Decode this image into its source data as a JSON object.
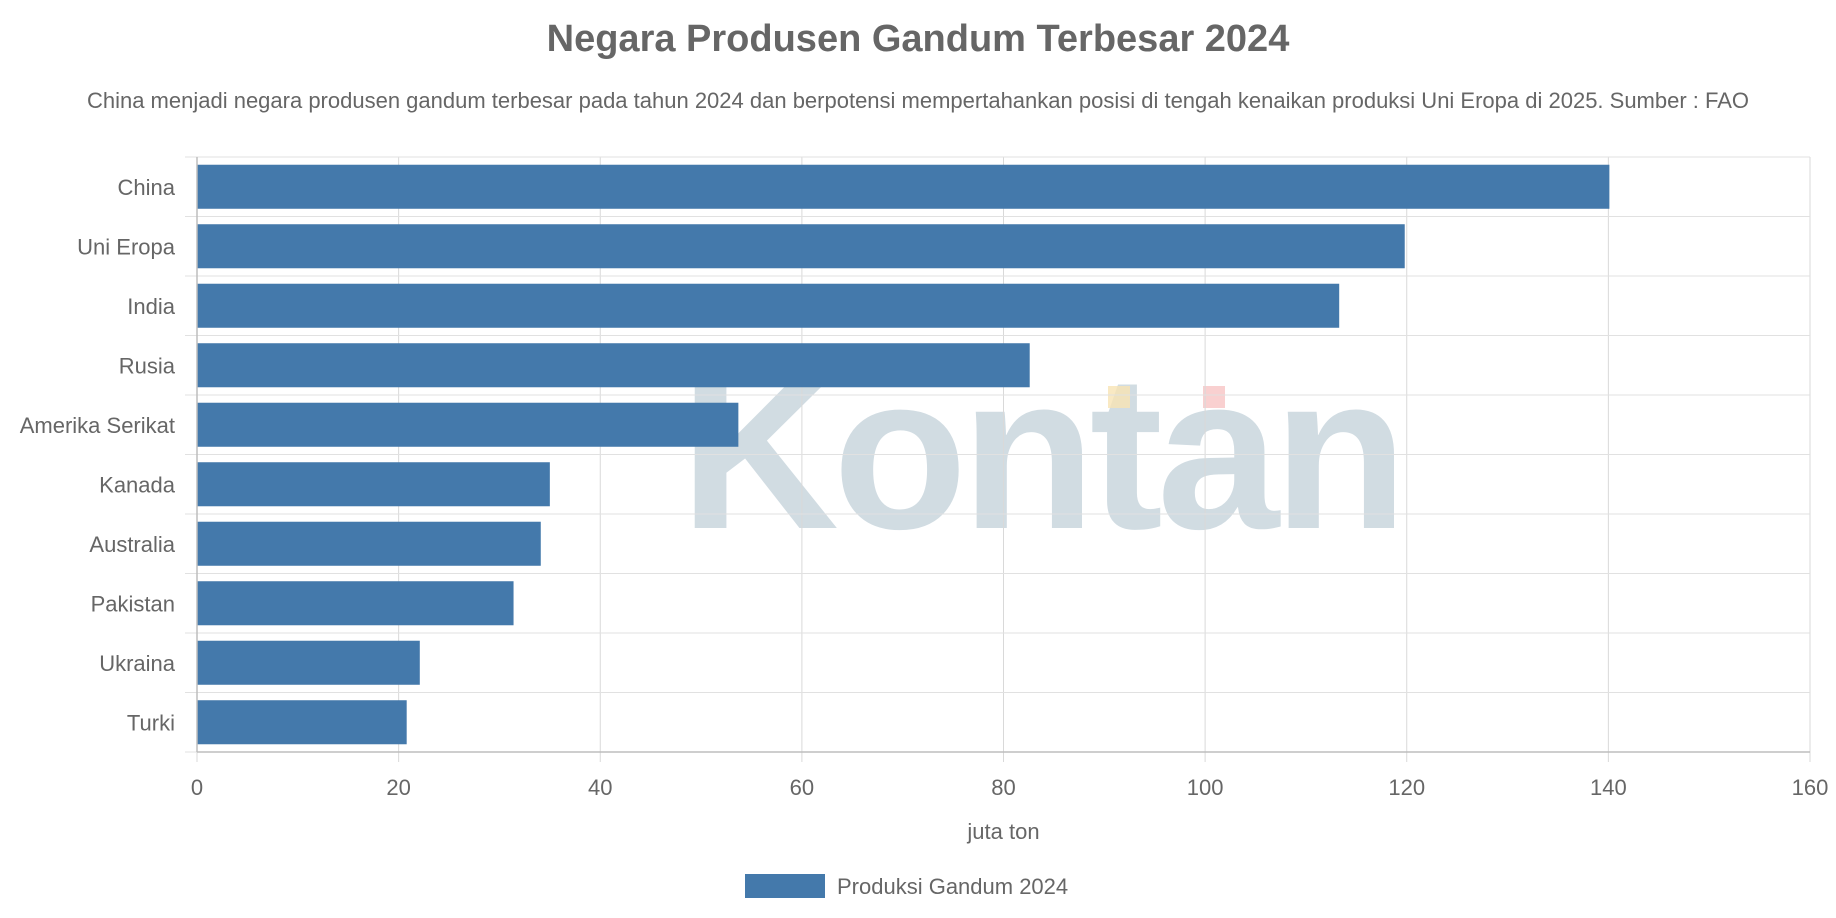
{
  "chart_data": {
    "type": "bar",
    "orientation": "horizontal",
    "title": "Negara Produsen Gandum Terbesar 2024",
    "subtitle": "China menjadi negara produsen gandum terbesar pada tahun 2024 dan berpotensi mempertahankan posisi di tengah kenaikan produksi Uni Eropa di 2025. Sumber : FAO",
    "categories": [
      "China",
      "Uni Eropa",
      "India",
      "Rusia",
      "Amerika Serikat",
      "Kanada",
      "Australia",
      "Pakistan",
      "Ukraina",
      "Turki"
    ],
    "series": [
      {
        "name": "Produksi Gandum 2024",
        "values": [
          140.1,
          119.8,
          113.3,
          82.6,
          53.7,
          35.0,
          34.1,
          31.4,
          22.1,
          20.8
        ],
        "color": "#4479ab"
      }
    ],
    "xlabel": "juta ton",
    "ylabel": "",
    "xlim": [
      0,
      160
    ],
    "xticks": [
      "0",
      "20",
      "40",
      "60",
      "80",
      "100",
      "120",
      "140",
      "160"
    ],
    "grid": true,
    "legend": "bottom",
    "watermark": "Kontan"
  }
}
